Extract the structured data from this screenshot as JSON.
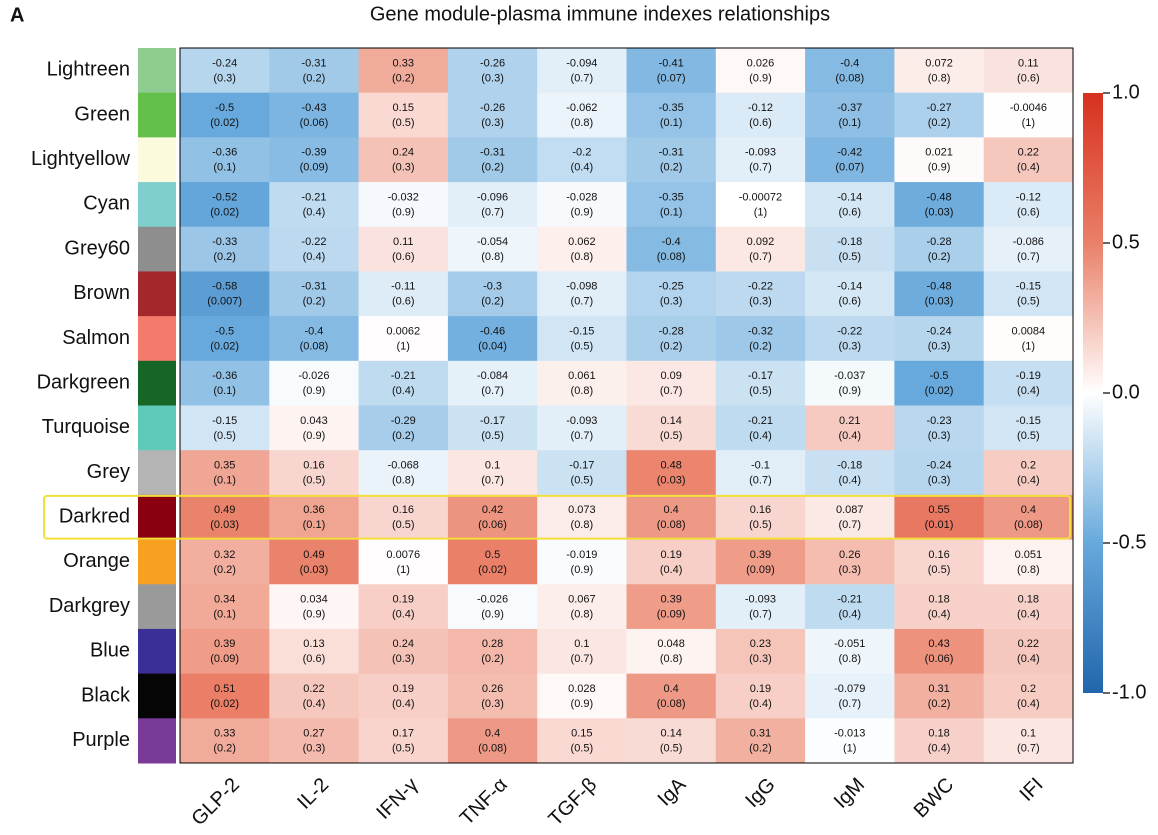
{
  "chart_data": {
    "type": "heatmap",
    "panel_label": "A",
    "title": "Gene module-plasma immune indexes relationships",
    "columns": [
      "GLP-2",
      "IL-2",
      "IFN-γ",
      "TNF-α",
      "TGF-β",
      "IgA",
      "IgG",
      "IgM",
      "BWC",
      "IFI"
    ],
    "rows": [
      "Lightreen",
      "Green",
      "Lightyellow",
      "Cyan",
      "Grey60",
      "Brown",
      "Salmon",
      "Darkgreen",
      "Turquoise",
      "Grey",
      "Darkred",
      "Orange",
      "Darkgrey",
      "Blue",
      "Black",
      "Purple"
    ],
    "row_colors": [
      "#8fcc8f",
      "#62bf4a",
      "#fbfadc",
      "#7fcfcf",
      "#8e8e8e",
      "#a3272b",
      "#f47b6b",
      "#166628",
      "#5ecab7",
      "#b4b4b4",
      "#8b0010",
      "#f8a020",
      "#9a9a9a",
      "#3a2f96",
      "#050505",
      "#7a3a98"
    ],
    "values": [
      [
        -0.24,
        -0.31,
        0.33,
        -0.26,
        -0.094,
        -0.41,
        0.026,
        -0.4,
        0.072,
        0.11
      ],
      [
        -0.5,
        -0.43,
        0.15,
        -0.26,
        -0.062,
        -0.35,
        -0.12,
        -0.37,
        -0.27,
        -0.0046
      ],
      [
        -0.36,
        -0.39,
        0.24,
        -0.31,
        -0.2,
        -0.31,
        -0.093,
        -0.42,
        0.021,
        0.22
      ],
      [
        -0.52,
        -0.21,
        -0.032,
        -0.096,
        -0.028,
        -0.35,
        -0.00072,
        -0.14,
        -0.48,
        -0.12
      ],
      [
        -0.33,
        -0.22,
        0.11,
        -0.054,
        0.062,
        -0.4,
        0.092,
        -0.18,
        -0.28,
        -0.086
      ],
      [
        -0.58,
        -0.31,
        -0.11,
        -0.3,
        -0.098,
        -0.25,
        -0.22,
        -0.14,
        -0.48,
        -0.15
      ],
      [
        -0.5,
        -0.4,
        0.0062,
        -0.46,
        -0.15,
        -0.28,
        -0.32,
        -0.22,
        -0.24,
        0.0084
      ],
      [
        -0.36,
        -0.026,
        -0.21,
        -0.084,
        0.061,
        0.09,
        -0.17,
        -0.037,
        -0.5,
        -0.19
      ],
      [
        -0.15,
        0.043,
        -0.29,
        -0.17,
        -0.093,
        0.14,
        -0.21,
        0.21,
        -0.23,
        -0.15
      ],
      [
        0.35,
        0.16,
        -0.068,
        0.1,
        -0.17,
        0.48,
        -0.1,
        -0.18,
        -0.24,
        0.2
      ],
      [
        0.49,
        0.36,
        0.16,
        0.42,
        0.073,
        0.4,
        0.16,
        0.087,
        0.55,
        0.4
      ],
      [
        0.32,
        0.49,
        0.0076,
        0.5,
        -0.019,
        0.19,
        0.39,
        0.26,
        0.16,
        0.051
      ],
      [
        0.34,
        0.034,
        0.19,
        -0.026,
        0.067,
        0.39,
        -0.093,
        -0.21,
        0.18,
        0.18
      ],
      [
        0.39,
        0.13,
        0.24,
        0.28,
        0.1,
        0.048,
        0.23,
        -0.051,
        0.43,
        0.22
      ],
      [
        0.51,
        0.22,
        0.19,
        0.26,
        0.028,
        0.4,
        0.19,
        -0.079,
        0.31,
        0.2
      ],
      [
        0.33,
        0.27,
        0.17,
        0.4,
        0.15,
        0.14,
        0.31,
        -0.013,
        0.18,
        0.1
      ]
    ],
    "annotations": [
      [
        "(0.3)",
        "(0.2)",
        "(0.2)",
        "(0.3)",
        "(0.7)",
        "(0.07)",
        "(0.9)",
        "(0.08)",
        "(0.8)",
        "(0.6)"
      ],
      [
        "(0.02)",
        "(0.06)",
        "(0.5)",
        "(0.3)",
        "(0.8)",
        "(0.1)",
        "(0.6)",
        "(0.1)",
        "(0.2)",
        "(1)"
      ],
      [
        "(0.1)",
        "(0.09)",
        "(0.3)",
        "(0.2)",
        "(0.4)",
        "(0.2)",
        "(0.7)",
        "(0.07)",
        "(0.9)",
        "(0.4)"
      ],
      [
        "(0.02)",
        "(0.4)",
        "(0.9)",
        "(0.7)",
        "(0.9)",
        "(0.1)",
        "(1)",
        "(0.6)",
        "(0.03)",
        "(0.6)"
      ],
      [
        "(0.2)",
        "(0.4)",
        "(0.6)",
        "(0.8)",
        "(0.8)",
        "(0.08)",
        "(0.7)",
        "(0.5)",
        "(0.2)",
        "(0.7)"
      ],
      [
        "(0.007)",
        "(0.2)",
        "(0.6)",
        "(0.2)",
        "(0.7)",
        "(0.3)",
        "(0.3)",
        "(0.6)",
        "(0.03)",
        "(0.5)"
      ],
      [
        "(0.02)",
        "(0.08)",
        "(1)",
        "(0.04)",
        "(0.5)",
        "(0.2)",
        "(0.2)",
        "(0.3)",
        "(0.3)",
        "(1)"
      ],
      [
        "(0.1)",
        "(0.9)",
        "(0.4)",
        "(0.7)",
        "(0.8)",
        "(0.7)",
        "(0.5)",
        "(0.9)",
        "(0.02)",
        "(0.4)"
      ],
      [
        "(0.5)",
        "(0.9)",
        "(0.2)",
        "(0.5)",
        "(0.7)",
        "(0.5)",
        "(0.4)",
        "(0.4)",
        "(0.3)",
        "(0.5)"
      ],
      [
        "(0.1)",
        "(0.5)",
        "(0.8)",
        "(0.7)",
        "(0.5)",
        "(0.03)",
        "(0.7)",
        "(0.4)",
        "(0.3)",
        "(0.4)"
      ],
      [
        "(0.03)",
        "(0.1)",
        "(0.5)",
        "(0.06)",
        "(0.8)",
        "(0.08)",
        "(0.5)",
        "(0.7)",
        "(0.01)",
        "(0.08)"
      ],
      [
        "(0.2)",
        "(0.03)",
        "(1)",
        "(0.02)",
        "(0.9)",
        "(0.4)",
        "(0.09)",
        "(0.3)",
        "(0.5)",
        "(0.8)"
      ],
      [
        "(0.1)",
        "(0.9)",
        "(0.4)",
        "(0.9)",
        "(0.8)",
        "(0.09)",
        "(0.7)",
        "(0.4)",
        "(0.4)",
        "(0.4)"
      ],
      [
        "(0.09)",
        "(0.6)",
        "(0.3)",
        "(0.2)",
        "(0.7)",
        "(0.8)",
        "(0.3)",
        "(0.8)",
        "(0.06)",
        "(0.4)"
      ],
      [
        "(0.02)",
        "(0.4)",
        "(0.4)",
        "(0.3)",
        "(0.9)",
        "(0.08)",
        "(0.4)",
        "(0.7)",
        "(0.2)",
        "(0.4)"
      ],
      [
        "(0.2)",
        "(0.3)",
        "(0.5)",
        "(0.08)",
        "(0.5)",
        "(0.5)",
        "(0.2)",
        "(1)",
        "(0.4)",
        "(0.7)"
      ]
    ],
    "colors": [
      "#2166ac",
      "#67a9dc",
      "#ffffff",
      "#ea8068",
      "#d7301f"
    ],
    "zlim": [
      -1,
      1
    ],
    "zticks": [
      {
        "value": -1,
        "label": "-1.0"
      },
      -0.5,
      {
        "value": 0,
        "label": "0.0"
      },
      0.5,
      {
        "value": 1,
        "label": "1.0"
      }
    ],
    "highlight_row": 10,
    "highlight_color": "#f2df3a"
  }
}
